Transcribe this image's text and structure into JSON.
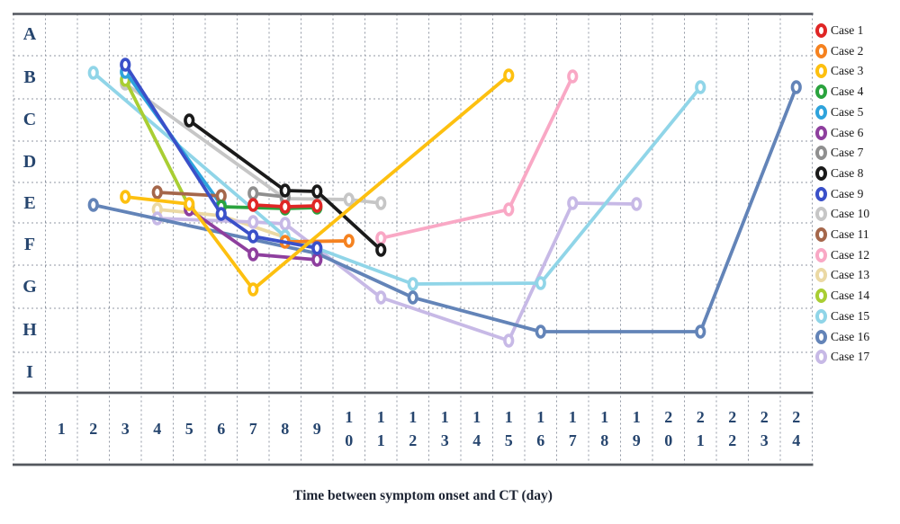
{
  "chart_data": {
    "type": "line",
    "title": "Time between symptom onset and CT (day)",
    "x_axis": {
      "label": "Time between symptom onset and CT (day)",
      "ticks": [
        1,
        2,
        3,
        4,
        5,
        6,
        7,
        8,
        9,
        10,
        11,
        12,
        13,
        14,
        15,
        16,
        17,
        18,
        19,
        20,
        21,
        22,
        23,
        24
      ]
    },
    "y_axis": {
      "categories": [
        "A",
        "B",
        "C",
        "D",
        "E",
        "F",
        "G",
        "H",
        "I"
      ]
    },
    "grid": "dashed",
    "legend_position": "right",
    "series": [
      {
        "name": "Case 1",
        "color": "#DF2626",
        "points": [
          {
            "day": 7,
            "row": "E",
            "py": 228
          },
          {
            "day": 8,
            "row": "E",
            "py": 230
          },
          {
            "day": 9,
            "row": "E",
            "py": 229
          }
        ]
      },
      {
        "name": "Case 2",
        "color": "#F58220",
        "points": [
          {
            "day": 8,
            "row": "F",
            "py": 269
          },
          {
            "day": 10,
            "row": "F",
            "py": 268
          }
        ]
      },
      {
        "name": "Case 3",
        "color": "#FDC010",
        "points": [
          {
            "day": 3,
            "row": "E",
            "py": 219
          },
          {
            "day": 5,
            "row": "E",
            "py": 227
          },
          {
            "day": 7,
            "row": "G",
            "py": 322
          },
          {
            "day": 15,
            "row": "B",
            "py": 84
          }
        ]
      },
      {
        "name": "Case 4",
        "color": "#2AA33E",
        "points": [
          {
            "day": 6,
            "row": "E",
            "py": 230
          },
          {
            "day": 8,
            "row": "E",
            "py": 232
          },
          {
            "day": 9,
            "row": "E",
            "py": 231
          }
        ]
      },
      {
        "name": "Case 5",
        "color": "#2EA3DC",
        "points": [
          {
            "day": 3,
            "row": "B",
            "py": 80
          },
          {
            "day": 6,
            "row": "E",
            "py": 228
          }
        ]
      },
      {
        "name": "Case 6",
        "color": "#8E3F9E",
        "points": [
          {
            "day": 5,
            "row": "E",
            "py": 233
          },
          {
            "day": 7,
            "row": "F",
            "py": 283
          },
          {
            "day": 9,
            "row": "F",
            "py": 289
          }
        ]
      },
      {
        "name": "Case 7",
        "color": "#8F8F8F",
        "points": [
          {
            "day": 7,
            "row": "E",
            "py": 215
          },
          {
            "day": 8,
            "row": "E",
            "py": 219
          }
        ]
      },
      {
        "name": "Case 8",
        "color": "#1A1A1A",
        "points": [
          {
            "day": 5,
            "row": "C",
            "py": 134
          },
          {
            "day": 8,
            "row": "E",
            "py": 212
          },
          {
            "day": 9,
            "row": "E",
            "py": 213
          },
          {
            "day": 11,
            "row": "F",
            "py": 278
          }
        ]
      },
      {
        "name": "Case 9",
        "color": "#3A50C9",
        "points": [
          {
            "day": 3,
            "row": "B",
            "py": 72
          },
          {
            "day": 6,
            "row": "E",
            "py": 238
          },
          {
            "day": 7,
            "row": "F",
            "py": 263
          },
          {
            "day": 9,
            "row": "F",
            "py": 276
          }
        ]
      },
      {
        "name": "Case 10",
        "color": "#C6C6C6",
        "points": [
          {
            "day": 3,
            "row": "B",
            "py": 93
          },
          {
            "day": 8,
            "row": "E",
            "py": 221
          },
          {
            "day": 10,
            "row": "E",
            "py": 222
          },
          {
            "day": 11,
            "row": "E",
            "py": 226
          }
        ]
      },
      {
        "name": "Case 11",
        "color": "#A5674B",
        "points": [
          {
            "day": 4,
            "row": "E",
            "py": 214
          },
          {
            "day": 6,
            "row": "E",
            "py": 218
          }
        ]
      },
      {
        "name": "Case 12",
        "color": "#F9A8C5",
        "points": [
          {
            "day": 11,
            "row": "F",
            "py": 265
          },
          {
            "day": 15,
            "row": "E",
            "py": 233
          },
          {
            "day": 17,
            "row": "B",
            "py": 85
          }
        ]
      },
      {
        "name": "Case 13",
        "color": "#EBD9A4",
        "points": [
          {
            "day": 4,
            "row": "E",
            "py": 233
          },
          {
            "day": 6,
            "row": "E",
            "py": 240
          },
          {
            "day": 9,
            "row": "F",
            "py": 276
          }
        ]
      },
      {
        "name": "Case 14",
        "color": "#A9CE33",
        "points": [
          {
            "day": 3,
            "row": "B",
            "py": 89
          },
          {
            "day": 5,
            "row": "E",
            "py": 230
          }
        ]
      },
      {
        "name": "Case 15",
        "color": "#90D5E8",
        "points": [
          {
            "day": 2,
            "row": "B",
            "py": 81
          },
          {
            "day": 8,
            "row": "F",
            "py": 263
          },
          {
            "day": 12,
            "row": "G",
            "py": 316
          },
          {
            "day": 16,
            "row": "G",
            "py": 315
          },
          {
            "day": 21,
            "row": "B",
            "py": 97
          }
        ]
      },
      {
        "name": "Case 16",
        "color": "#6384B8",
        "points": [
          {
            "day": 2,
            "row": "E",
            "py": 228
          },
          {
            "day": 9,
            "row": "F",
            "py": 282
          },
          {
            "day": 12,
            "row": "G",
            "py": 331
          },
          {
            "day": 16,
            "row": "H",
            "py": 369
          },
          {
            "day": 21,
            "row": "H",
            "py": 369
          },
          {
            "day": 24,
            "row": "B",
            "py": 97
          }
        ]
      },
      {
        "name": "Case 17",
        "color": "#C7B9E6",
        "points": [
          {
            "day": 4,
            "row": "E",
            "py": 243
          },
          {
            "day": 7,
            "row": "E",
            "py": 247
          },
          {
            "day": 8,
            "row": "E",
            "py": 249
          },
          {
            "day": 11,
            "row": "G",
            "py": 331
          },
          {
            "day": 15,
            "row": "H",
            "py": 379
          },
          {
            "day": 17,
            "row": "E",
            "py": 226
          },
          {
            "day": 19,
            "row": "E",
            "py": 227
          }
        ]
      }
    ]
  }
}
